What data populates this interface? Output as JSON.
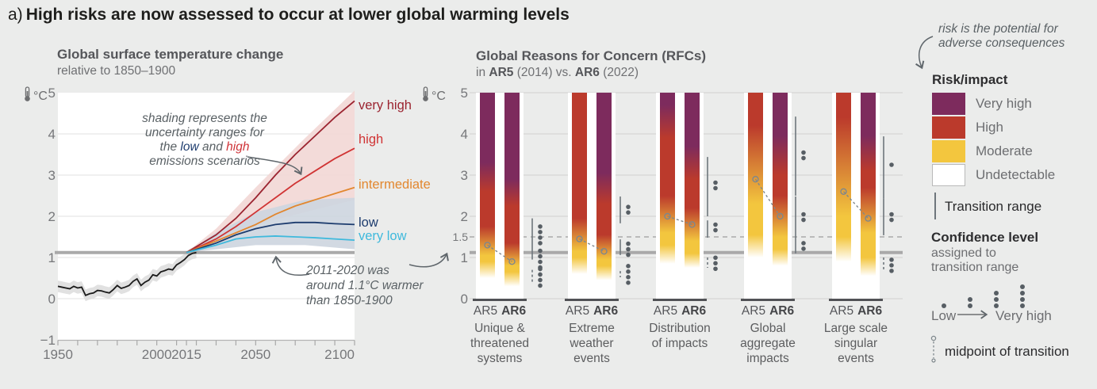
{
  "title": {
    "prefix": "a)",
    "text": "High risks are now assessed to occur at lower global warming levels"
  },
  "colors": {
    "background": "#ebeceb",
    "plot_bg": "#ffffff",
    "purple": "#7d2b5d",
    "red": "#bb3a2c",
    "yellow": "#f3c63e",
    "white": "#ffffff",
    "very_high": "#9b2430",
    "high": "#d03434",
    "intermediate": "#e2872f",
    "low": "#1d3c6e",
    "very_low": "#3fb9dc",
    "high_band": "#f2d7d5",
    "low_band": "#cdd5df",
    "historical": "#1a1a1a",
    "historical_band": "#dcdcdc",
    "current_line": "#a9a9a9",
    "grid_white": "#e0e0e0",
    "grid_gray": "#d0d0cf",
    "dashed_15": "#9c9c9c",
    "marks": "#5f666b",
    "dots": "#575e64",
    "midpoint": "#7e878c"
  },
  "chart_data": {
    "left": {
      "type": "line",
      "title": "Global surface temperature change",
      "subtitle": "relative to 1850–1900",
      "unit": "°C",
      "y_ticks": [
        5,
        4,
        3,
        2,
        1,
        0,
        -1
      ],
      "x_ticks": [
        1950,
        2000,
        2015,
        2050,
        2100
      ],
      "x_range": [
        1950,
        2100
      ],
      "y_range": [
        -1,
        5
      ],
      "current_warming_line": 1.12,
      "historical": {
        "uncertainty": 0.14,
        "points": [
          [
            1950,
            0.3
          ],
          [
            1952,
            0.28
          ],
          [
            1954,
            0.26
          ],
          [
            1956,
            0.24
          ],
          [
            1958,
            0.3
          ],
          [
            1960,
            0.26
          ],
          [
            1962,
            0.28
          ],
          [
            1964,
            0.08
          ],
          [
            1966,
            0.12
          ],
          [
            1968,
            0.14
          ],
          [
            1970,
            0.2
          ],
          [
            1972,
            0.19
          ],
          [
            1974,
            0.16
          ],
          [
            1976,
            0.14
          ],
          [
            1978,
            0.22
          ],
          [
            1980,
            0.32
          ],
          [
            1982,
            0.25
          ],
          [
            1984,
            0.28
          ],
          [
            1986,
            0.32
          ],
          [
            1988,
            0.42
          ],
          [
            1990,
            0.48
          ],
          [
            1992,
            0.32
          ],
          [
            1994,
            0.4
          ],
          [
            1996,
            0.45
          ],
          [
            1998,
            0.58
          ],
          [
            2000,
            0.55
          ],
          [
            2002,
            0.65
          ],
          [
            2004,
            0.68
          ],
          [
            2006,
            0.72
          ],
          [
            2008,
            0.7
          ],
          [
            2010,
            0.82
          ],
          [
            2012,
            0.88
          ],
          [
            2014,
            0.95
          ],
          [
            2016,
            1.05
          ],
          [
            2018,
            1.1
          ],
          [
            2020,
            1.12
          ]
        ]
      },
      "bands": [
        {
          "name": "high-emissions-uncertainty",
          "color_key": "high_band",
          "points": [
            [
              2015,
              1.12,
              1.12
            ],
            [
              2030,
              1.35,
              1.7
            ],
            [
              2050,
              1.8,
              2.7
            ],
            [
              2075,
              2.1,
              3.9
            ],
            [
              2100,
              2.4,
              5.05
            ]
          ]
        },
        {
          "name": "low-emissions-uncertainty",
          "color_key": "low_band",
          "points": [
            [
              2015,
              1.12,
              1.12
            ],
            [
              2030,
              1.2,
              1.6
            ],
            [
              2050,
              1.3,
              2.1
            ],
            [
              2075,
              1.3,
              2.4
            ],
            [
              2100,
              1.2,
              2.45
            ]
          ]
        }
      ],
      "scenarios": [
        {
          "label": "very high",
          "color_key": "very_high",
          "points": [
            [
              2015,
              1.12
            ],
            [
              2030,
              1.55
            ],
            [
              2040,
              1.95
            ],
            [
              2050,
              2.45
            ],
            [
              2060,
              3.0
            ],
            [
              2070,
              3.5
            ],
            [
              2080,
              3.95
            ],
            [
              2090,
              4.4
            ],
            [
              2100,
              4.8
            ]
          ]
        },
        {
          "label": "high",
          "color_key": "high",
          "points": [
            [
              2015,
              1.12
            ],
            [
              2030,
              1.45
            ],
            [
              2040,
              1.75
            ],
            [
              2050,
              2.1
            ],
            [
              2060,
              2.45
            ],
            [
              2070,
              2.8
            ],
            [
              2080,
              3.1
            ],
            [
              2090,
              3.4
            ],
            [
              2100,
              3.65
            ]
          ]
        },
        {
          "label": "intermediate",
          "color_key": "intermediate",
          "points": [
            [
              2015,
              1.12
            ],
            [
              2030,
              1.4
            ],
            [
              2040,
              1.6
            ],
            [
              2050,
              1.8
            ],
            [
              2060,
              2.05
            ],
            [
              2070,
              2.25
            ],
            [
              2080,
              2.4
            ],
            [
              2090,
              2.55
            ],
            [
              2100,
              2.7
            ]
          ]
        },
        {
          "label": "low",
          "color_key": "low",
          "points": [
            [
              2015,
              1.12
            ],
            [
              2030,
              1.35
            ],
            [
              2040,
              1.55
            ],
            [
              2050,
              1.7
            ],
            [
              2060,
              1.8
            ],
            [
              2070,
              1.85
            ],
            [
              2080,
              1.85
            ],
            [
              2090,
              1.82
            ],
            [
              2100,
              1.8
            ]
          ]
        },
        {
          "label": "very low",
          "color_key": "very_low",
          "points": [
            [
              2015,
              1.12
            ],
            [
              2030,
              1.3
            ],
            [
              2040,
              1.45
            ],
            [
              2050,
              1.5
            ],
            [
              2060,
              1.52
            ],
            [
              2070,
              1.5
            ],
            [
              2080,
              1.48
            ],
            [
              2090,
              1.45
            ],
            [
              2100,
              1.42
            ]
          ]
        }
      ],
      "annotation_shading": {
        "l1": "shading represents the",
        "l2": "uncertainty ranges for",
        "l3a": "the ",
        "l3b": "low",
        "l3c": " and ",
        "l3d": "high",
        "l4": "emissions scenarios"
      },
      "annotation_current": {
        "l1": "2011-2020 was",
        "l2": "around 1.1°C warmer",
        "l3": "than 1850-1900"
      }
    },
    "rfc": {
      "type": "burning-embers",
      "title": "Global Reasons for Concern (RFCs)",
      "title2": {
        "p1": "in ",
        "p2": "AR5",
        "p3": " (2014) vs. ",
        "p4": "AR6",
        "p5": " (2022)"
      },
      "unit": "°C",
      "y_ticks": [
        5,
        4,
        3,
        2,
        1.5,
        1,
        0
      ],
      "dashed_level": 1.5,
      "current_warming_line": 1.12,
      "bar_labels": {
        "ar5": "AR5",
        "ar6": "AR6"
      },
      "groups": [
        {
          "label_lines": [
            "Unique &",
            "threatened",
            "systems"
          ],
          "ar5": {
            "stops": [
              [
                0,
                "white"
              ],
              [
                0.5,
                "white"
              ],
              [
                0.9,
                "yellow"
              ],
              [
                1.05,
                "yellow"
              ],
              [
                1.75,
                "red"
              ],
              [
                2.6,
                "red"
              ],
              [
                3.3,
                "purple"
              ],
              [
                5,
                "purple"
              ]
            ],
            "midpoint": 1.3
          },
          "ar6": {
            "stops": [
              [
                0,
                "white"
              ],
              [
                0.3,
                "white"
              ],
              [
                0.65,
                "yellow"
              ],
              [
                0.8,
                "yellow"
              ],
              [
                1.35,
                "red"
              ],
              [
                2.25,
                "red"
              ],
              [
                2.9,
                "purple"
              ],
              [
                5,
                "purple"
              ]
            ],
            "midpoint": 0.9
          },
          "transition_lines": [
            [
              0.95,
              1.95,
              "solid"
            ],
            [
              0.38,
              0.7,
              "dashed"
            ]
          ],
          "dot_clusters": [
            [
              1.55,
              4
            ],
            [
              0.96,
              4
            ],
            [
              0.52,
              4
            ]
          ]
        },
        {
          "label_lines": [
            "Extreme",
            "weather",
            "events"
          ],
          "ar5": {
            "stops": [
              [
                0,
                "white"
              ],
              [
                0.6,
                "white"
              ],
              [
                1.0,
                "yellow"
              ],
              [
                1.15,
                "yellow"
              ],
              [
                1.95,
                "red"
              ],
              [
                5,
                "red"
              ]
            ],
            "midpoint": 1.45
          },
          "ar6": {
            "stops": [
              [
                0,
                "white"
              ],
              [
                0.45,
                "white"
              ],
              [
                0.8,
                "yellow"
              ],
              [
                0.95,
                "yellow"
              ],
              [
                1.55,
                "red"
              ],
              [
                2.3,
                "red"
              ],
              [
                3.05,
                "purple"
              ],
              [
                5,
                "purple"
              ]
            ],
            "midpoint": 1.15
          },
          "transition_lines": [
            [
              1.83,
              2.48,
              "solid"
            ],
            [
              1.06,
              1.44,
              "solid"
            ],
            [
              0.52,
              0.67,
              "dashed"
            ]
          ],
          "dot_clusters": [
            [
              2.16,
              2
            ],
            [
              1.2,
              3
            ],
            [
              0.59,
              4
            ]
          ]
        },
        {
          "label_lines": [
            "Distribution",
            "of impacts"
          ],
          "ar5": {
            "stops": [
              [
                0,
                "white"
              ],
              [
                0.85,
                "white"
              ],
              [
                1.3,
                "yellow"
              ],
              [
                1.6,
                "yellow"
              ],
              [
                2.5,
                "red"
              ],
              [
                3.9,
                "red"
              ],
              [
                4.7,
                "purple"
              ],
              [
                5,
                "purple"
              ]
            ],
            "midpoint": 2.0
          },
          "ar6": {
            "stops": [
              [
                0,
                "white"
              ],
              [
                0.75,
                "white"
              ],
              [
                1.1,
                "yellow"
              ],
              [
                1.4,
                "yellow"
              ],
              [
                2.2,
                "red"
              ],
              [
                2.9,
                "red"
              ],
              [
                3.7,
                "purple"
              ],
              [
                5,
                "purple"
              ]
            ],
            "midpoint": 1.8
          },
          "transition_lines": [
            [
              2.0,
              3.44,
              "solid"
            ],
            [
              1.48,
              1.9,
              "solid"
            ],
            [
              0.75,
              1.0,
              "dashed"
            ]
          ],
          "dot_clusters": [
            [
              2.75,
              2
            ],
            [
              1.73,
              2
            ],
            [
              0.86,
              3
            ]
          ]
        },
        {
          "label_lines": [
            "Global",
            "aggregate",
            "impacts"
          ],
          "ar5": {
            "stops": [
              [
                0,
                "white"
              ],
              [
                1.0,
                "white"
              ],
              [
                1.55,
                "yellow"
              ],
              [
                2.3,
                "yellow"
              ],
              [
                4.2,
                "red"
              ],
              [
                5,
                "red"
              ]
            ],
            "midpoint": 2.9
          },
          "ar6": {
            "stops": [
              [
                0,
                "white"
              ],
              [
                0.8,
                "white"
              ],
              [
                1.2,
                "yellow"
              ],
              [
                1.5,
                "yellow"
              ],
              [
                2.5,
                "red"
              ],
              [
                3.0,
                "red"
              ],
              [
                3.95,
                "purple"
              ],
              [
                5,
                "purple"
              ]
            ],
            "midpoint": 2.0
          },
          "transition_lines": [
            [
              2.5,
              4.42,
              "solid"
            ],
            [
              1.1,
              2.48,
              "solid"
            ]
          ],
          "dot_clusters": [
            [
              3.48,
              2
            ],
            [
              1.98,
              2
            ],
            [
              1.28,
              2
            ]
          ]
        },
        {
          "label_lines": [
            "Large scale",
            "singular",
            "events"
          ],
          "ar5": {
            "stops": [
              [
                0,
                "white"
              ],
              [
                0.9,
                "white"
              ],
              [
                1.5,
                "yellow"
              ],
              [
                2.0,
                "yellow"
              ],
              [
                4.4,
                "red"
              ],
              [
                5,
                "red"
              ]
            ],
            "midpoint": 2.6
          },
          "ar6": {
            "stops": [
              [
                0,
                "white"
              ],
              [
                0.55,
                "white"
              ],
              [
                1.0,
                "yellow"
              ],
              [
                1.6,
                "yellow"
              ],
              [
                2.7,
                "red"
              ],
              [
                3.1,
                "red"
              ],
              [
                3.95,
                "purple"
              ],
              [
                5,
                "purple"
              ]
            ],
            "midpoint": 1.95
          },
          "transition_lines": [
            [
              2.44,
              3.94,
              "solid"
            ],
            [
              1.54,
              2.44,
              "solid"
            ],
            [
              0.71,
              1.0,
              "dashed"
            ]
          ],
          "dot_clusters": [
            [
              3.25,
              1
            ],
            [
              1.98,
              2
            ],
            [
              0.81,
              3
            ]
          ]
        }
      ]
    }
  },
  "legend": {
    "note_l1": "risk is the potential for",
    "note_l2": "adverse consequences",
    "risk_impact_title": "Risk/impact",
    "items": [
      {
        "label": "Very high",
        "color_key": "purple"
      },
      {
        "label": "High",
        "color_key": "red"
      },
      {
        "label": "Moderate",
        "color_key": "yellow"
      },
      {
        "label": "Undetectable",
        "color_key": "white"
      }
    ],
    "transition_label": "Transition range",
    "confidence_title": "Confidence level",
    "confidence_sub1": "assigned to",
    "confidence_sub2": "transition range",
    "confidence_low": "Low",
    "confidence_high": "Very high",
    "confidence_dot_counts": [
      1,
      2,
      3,
      4
    ],
    "midpoint_label": "midpoint of transition"
  }
}
